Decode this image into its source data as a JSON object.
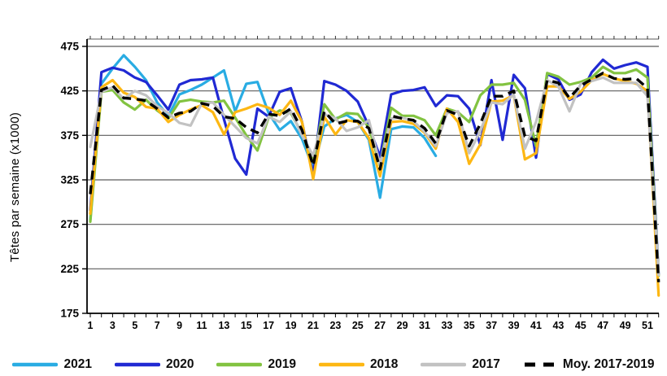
{
  "y_axis": {
    "label": "Têtes par semaine (x1000)",
    "ticks": [
      475,
      425,
      375,
      325,
      275,
      225,
      175
    ]
  },
  "x_axis": {
    "tick_labels": [
      1,
      3,
      5,
      7,
      9,
      11,
      13,
      15,
      17,
      19,
      21,
      23,
      25,
      27,
      29,
      31,
      33,
      35,
      37,
      39,
      41,
      43,
      45,
      47,
      49,
      51
    ]
  },
  "legend": [
    {
      "label": "2021",
      "color": "#29ACE3",
      "dash": false
    },
    {
      "label": "2020",
      "color": "#2029D3",
      "dash": false
    },
    {
      "label": "2019",
      "color": "#82C341",
      "dash": false
    },
    {
      "label": "2018",
      "color": "#FDB713",
      "dash": false
    },
    {
      "label": "2017",
      "color": "#C2C2C2",
      "dash": false
    },
    {
      "label": "Moy. 2017-2019",
      "color": "#000000",
      "dash": true
    }
  ],
  "chart_data": {
    "type": "line",
    "title": "",
    "xlabel": "",
    "y_label": "Têtes par semaine (x1000)",
    "ylim": [
      175,
      475
    ],
    "grid": true,
    "legend_position": "bottom",
    "x": [
      1,
      2,
      3,
      4,
      5,
      6,
      7,
      8,
      9,
      10,
      11,
      12,
      13,
      14,
      15,
      16,
      17,
      18,
      19,
      20,
      21,
      22,
      23,
      24,
      25,
      26,
      27,
      28,
      29,
      30,
      31,
      32,
      33,
      34,
      35,
      36,
      37,
      38,
      39,
      40,
      41,
      42,
      43,
      44,
      45,
      46,
      47,
      48,
      49,
      50,
      51,
      52
    ],
    "draw_order": [
      0,
      1,
      2,
      3,
      4,
      5
    ],
    "series": [
      {
        "name": "2021",
        "color": "#29ACE3",
        "dash": false,
        "values": [
          280,
          433,
          450,
          465,
          452,
          437,
          412,
          397,
          421,
          426,
          432,
          440,
          448,
          402,
          433,
          435,
          400,
          381,
          391,
          371,
          338,
          385,
          394,
          398,
          390,
          370,
          305,
          382,
          385,
          384,
          372,
          352,
          null,
          null,
          null,
          null,
          null,
          null,
          null,
          null,
          null,
          null,
          null,
          null,
          null,
          null,
          null,
          null,
          null,
          null,
          null,
          null
        ]
      },
      {
        "name": "2020",
        "color": "#2029D3",
        "dash": false,
        "values": [
          291,
          446,
          451,
          448,
          440,
          435,
          420,
          404,
          432,
          437,
          438,
          440,
          393,
          349,
          331,
          405,
          396,
          424,
          428,
          390,
          330,
          436,
          432,
          425,
          413,
          385,
          351,
          421,
          425,
          426,
          429,
          408,
          420,
          419,
          405,
          364,
          437,
          370,
          443,
          428,
          350,
          444,
          438,
          415,
          421,
          446,
          460,
          450,
          454,
          457,
          452,
          219
        ]
      },
      {
        "name": "2019",
        "color": "#82C341",
        "dash": false,
        "values": [
          278,
          424,
          426,
          412,
          404,
          415,
          403,
          394,
          413,
          415,
          413,
          412,
          414,
          395,
          375,
          358,
          395,
          403,
          400,
          377,
          345,
          410,
          393,
          400,
          399,
          384,
          341,
          406,
          397,
          397,
          392,
          375,
          405,
          401,
          390,
          420,
          432,
          432,
          434,
          415,
          363,
          445,
          441,
          432,
          435,
          440,
          452,
          445,
          445,
          449,
          440,
          217
        ]
      },
      {
        "name": "2018",
        "color": "#FDB713",
        "dash": false,
        "values": [
          287,
          429,
          437,
          423,
          418,
          407,
          405,
          390,
          398,
          404,
          409,
          401,
          376,
          401,
          405,
          410,
          406,
          398,
          414,
          390,
          326,
          396,
          376,
          392,
          390,
          372,
          329,
          390,
          391,
          388,
          378,
          360,
          405,
          390,
          343,
          365,
          413,
          414,
          420,
          348,
          355,
          430,
          430,
          416,
          424,
          437,
          444,
          439,
          436,
          433,
          425,
          195
        ]
      },
      {
        "name": "2017",
        "color": "#C2C2C2",
        "dash": false,
        "values": [
          362,
          424,
          429,
          416,
          425,
          420,
          408,
          400,
          389,
          386,
          411,
          412,
          398,
          385,
          372,
          366,
          396,
          390,
          402,
          375,
          352,
          399,
          394,
          380,
          384,
          392,
          342,
          394,
          395,
          391,
          379,
          363,
          400,
          402,
          355,
          380,
          412,
          410,
          421,
          360,
          390,
          437,
          430,
          402,
          433,
          436,
          440,
          434,
          434,
          434,
          419,
          218
        ]
      },
      {
        "name": "Moy. 2017-2019",
        "color": "#000000",
        "dash": true,
        "values": [
          309,
          426,
          431,
          417,
          416,
          414,
          405,
          395,
          400,
          402,
          411,
          408,
          396,
          394,
          384,
          378,
          399,
          397,
          405,
          381,
          341,
          402,
          388,
          391,
          391,
          383,
          337,
          397,
          394,
          392,
          383,
          366,
          403,
          398,
          363,
          388,
          419,
          419,
          425,
          374,
          369,
          437,
          434,
          417,
          431,
          438,
          445,
          439,
          438,
          439,
          428,
          210
        ]
      }
    ]
  }
}
